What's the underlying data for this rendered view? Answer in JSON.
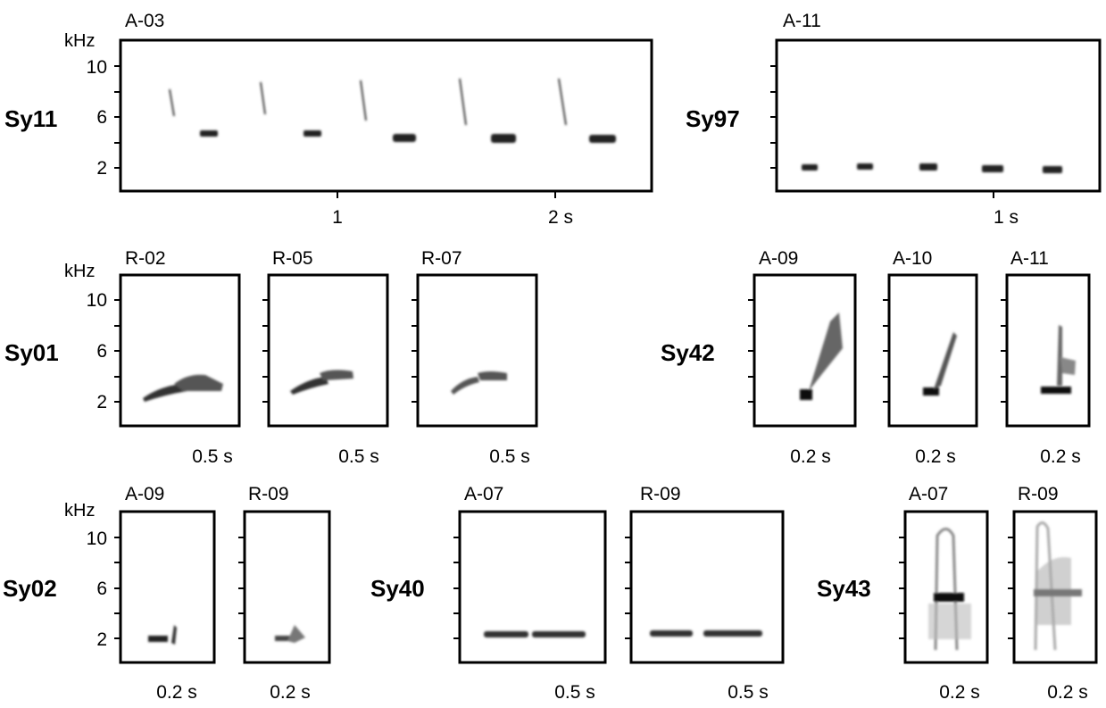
{
  "y_unit": "kHz",
  "y_ticks": [
    "10",
    "6",
    "2"
  ],
  "rows": [
    {
      "groups": [
        {
          "syllable": "Sy11",
          "show_y_labels": true,
          "panels": [
            {
              "id": "A-03",
              "x_ticks": [
                "1",
                "2 s"
              ]
            }
          ]
        },
        {
          "syllable": "Sy97",
          "show_y_labels": false,
          "panels": [
            {
              "id": "A-11",
              "x_ticks": [
                "1 s"
              ]
            }
          ]
        }
      ]
    },
    {
      "groups": [
        {
          "syllable": "Sy01",
          "show_y_labels": true,
          "panels": [
            {
              "id": "R-02",
              "x_ticks": [
                "0.5 s"
              ]
            },
            {
              "id": "R-05",
              "x_ticks": [
                "0.5 s"
              ]
            },
            {
              "id": "R-07",
              "x_ticks": [
                "0.5 s"
              ]
            }
          ]
        },
        {
          "syllable": "Sy42",
          "show_y_labels": false,
          "panels": [
            {
              "id": "A-09",
              "x_ticks": [
                "0.2 s"
              ]
            },
            {
              "id": "A-10",
              "x_ticks": [
                "0.2 s"
              ]
            },
            {
              "id": "A-11",
              "x_ticks": [
                "0.2 s"
              ]
            }
          ]
        }
      ]
    },
    {
      "groups": [
        {
          "syllable": "Sy02",
          "show_y_labels": true,
          "panels": [
            {
              "id": "A-09",
              "x_ticks": [
                "0.2 s"
              ]
            },
            {
              "id": "R-09",
              "x_ticks": [
                "0.2 s"
              ]
            }
          ]
        },
        {
          "syllable": "Sy40",
          "show_y_labels": false,
          "panels": [
            {
              "id": "A-07",
              "x_ticks": [
                "0.5 s"
              ]
            },
            {
              "id": "R-09",
              "x_ticks": [
                "0.5 s"
              ]
            }
          ]
        },
        {
          "syllable": "Sy43",
          "show_y_labels": false,
          "panels": [
            {
              "id": "A-07",
              "x_ticks": [
                "0.2 s"
              ]
            },
            {
              "id": "R-09",
              "x_ticks": [
                "0.2 s"
              ]
            }
          ]
        }
      ]
    }
  ]
}
